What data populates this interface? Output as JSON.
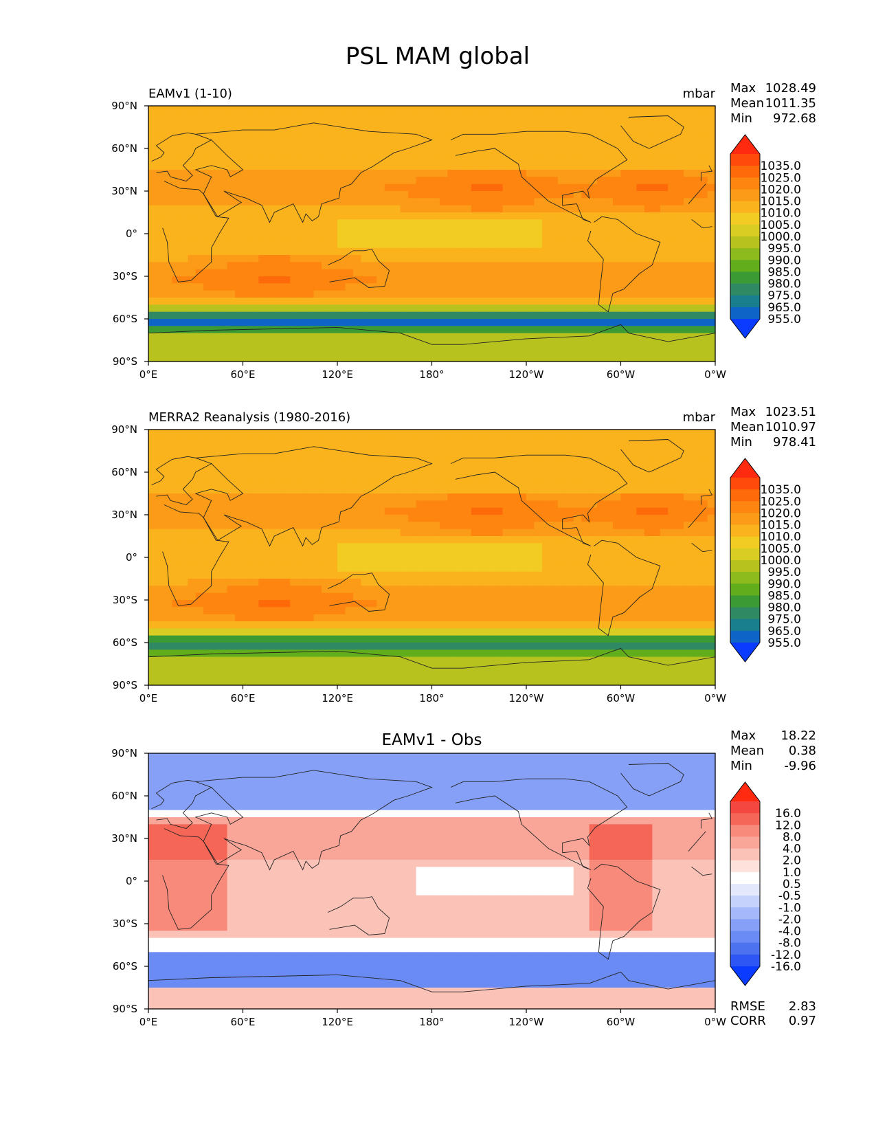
{
  "title": "PSL MAM global",
  "chart_data": [
    {
      "type": "heatmap",
      "title": "EAMv1 (1-10)",
      "units": "mbar",
      "stats": [
        {
          "label": "Max",
          "value": "1028.49"
        },
        {
          "label": "Mean",
          "value": "1011.35"
        },
        {
          "label": "Min",
          "value": "972.68"
        }
      ],
      "x_ticks": [
        "0°E",
        "60°E",
        "120°E",
        "180°",
        "120°W",
        "60°W",
        "0°W"
      ],
      "y_ticks": [
        "90°N",
        "60°N",
        "30°N",
        "0°",
        "30°S",
        "60°S",
        "90°S"
      ],
      "xlim": [
        0,
        360
      ],
      "ylim": [
        -90,
        90
      ],
      "colorbar": {
        "labels": [
          "1035.0",
          "1025.0",
          "1020.0",
          "1015.0",
          "1010.0",
          "1005.0",
          "1000.0",
          "995.0",
          "990.0",
          "985.0",
          "980.0",
          "975.0",
          "965.0",
          "955.0"
        ],
        "colors": [
          "#ff2a10",
          "#ff4a0c",
          "#fe6a0a",
          "#fd8510",
          "#fb9b17",
          "#fbb31d",
          "#f2cc22",
          "#d9cc22",
          "#b8c21f",
          "#8dba1c",
          "#62ad1c",
          "#3c9a35",
          "#2f8a63",
          "#197f8e",
          "#0f64c8",
          "#0a3cff"
        ]
      }
    },
    {
      "type": "heatmap",
      "title": "MERRA2 Reanalysis (1980-2016)",
      "units": "mbar",
      "stats": [
        {
          "label": "Max",
          "value": "1023.51"
        },
        {
          "label": "Mean",
          "value": "1010.97"
        },
        {
          "label": "Min",
          "value": "978.41"
        }
      ],
      "x_ticks": [
        "0°E",
        "60°E",
        "120°E",
        "180°",
        "120°W",
        "60°W",
        "0°W"
      ],
      "y_ticks": [
        "90°N",
        "60°N",
        "30°N",
        "0°",
        "30°S",
        "60°S",
        "90°S"
      ],
      "xlim": [
        0,
        360
      ],
      "ylim": [
        -90,
        90
      ],
      "colorbar": {
        "labels": [
          "1035.0",
          "1025.0",
          "1020.0",
          "1015.0",
          "1010.0",
          "1005.0",
          "1000.0",
          "995.0",
          "990.0",
          "985.0",
          "980.0",
          "975.0",
          "965.0",
          "955.0"
        ],
        "colors": [
          "#ff2a10",
          "#ff4a0c",
          "#fe6a0a",
          "#fd8510",
          "#fb9b17",
          "#fbb31d",
          "#f2cc22",
          "#d9cc22",
          "#b8c21f",
          "#8dba1c",
          "#62ad1c",
          "#3c9a35",
          "#2f8a63",
          "#197f8e",
          "#0f64c8",
          "#0a3cff"
        ]
      }
    },
    {
      "type": "heatmap",
      "title": "EAMv1 - Obs",
      "units": "",
      "stats": [
        {
          "label": "Max",
          "value": "18.22"
        },
        {
          "label": "Mean",
          "value": "0.38"
        },
        {
          "label": "Min",
          "value": "-9.96"
        }
      ],
      "footer_stats": [
        {
          "label": "RMSE",
          "value": "2.83"
        },
        {
          "label": "CORR",
          "value": "0.97"
        }
      ],
      "x_ticks": [
        "0°E",
        "60°E",
        "120°E",
        "180°",
        "120°W",
        "60°W",
        "0°W"
      ],
      "y_ticks": [
        "90°N",
        "60°N",
        "30°N",
        "0°",
        "30°S",
        "60°S",
        "90°S"
      ],
      "xlim": [
        0,
        360
      ],
      "ylim": [
        -90,
        90
      ],
      "colorbar": {
        "labels": [
          "16.0",
          "12.0",
          "8.0",
          "4.0",
          "2.0",
          "1.0",
          "0.5",
          "-0.5",
          "-1.0",
          "-2.0",
          "-4.0",
          "-8.0",
          "-12.0",
          "-16.0"
        ],
        "colors": [
          "#ff2a10",
          "#f3473f",
          "#f56657",
          "#f88a7b",
          "#f9a699",
          "#fbc3b8",
          "#fde1da",
          "#ffffff",
          "#e3e8fc",
          "#c5d2fb",
          "#a5b8fa",
          "#86a0f7",
          "#6a8af4",
          "#4d72f0",
          "#2d56f5",
          "#0a3cff"
        ]
      }
    }
  ]
}
